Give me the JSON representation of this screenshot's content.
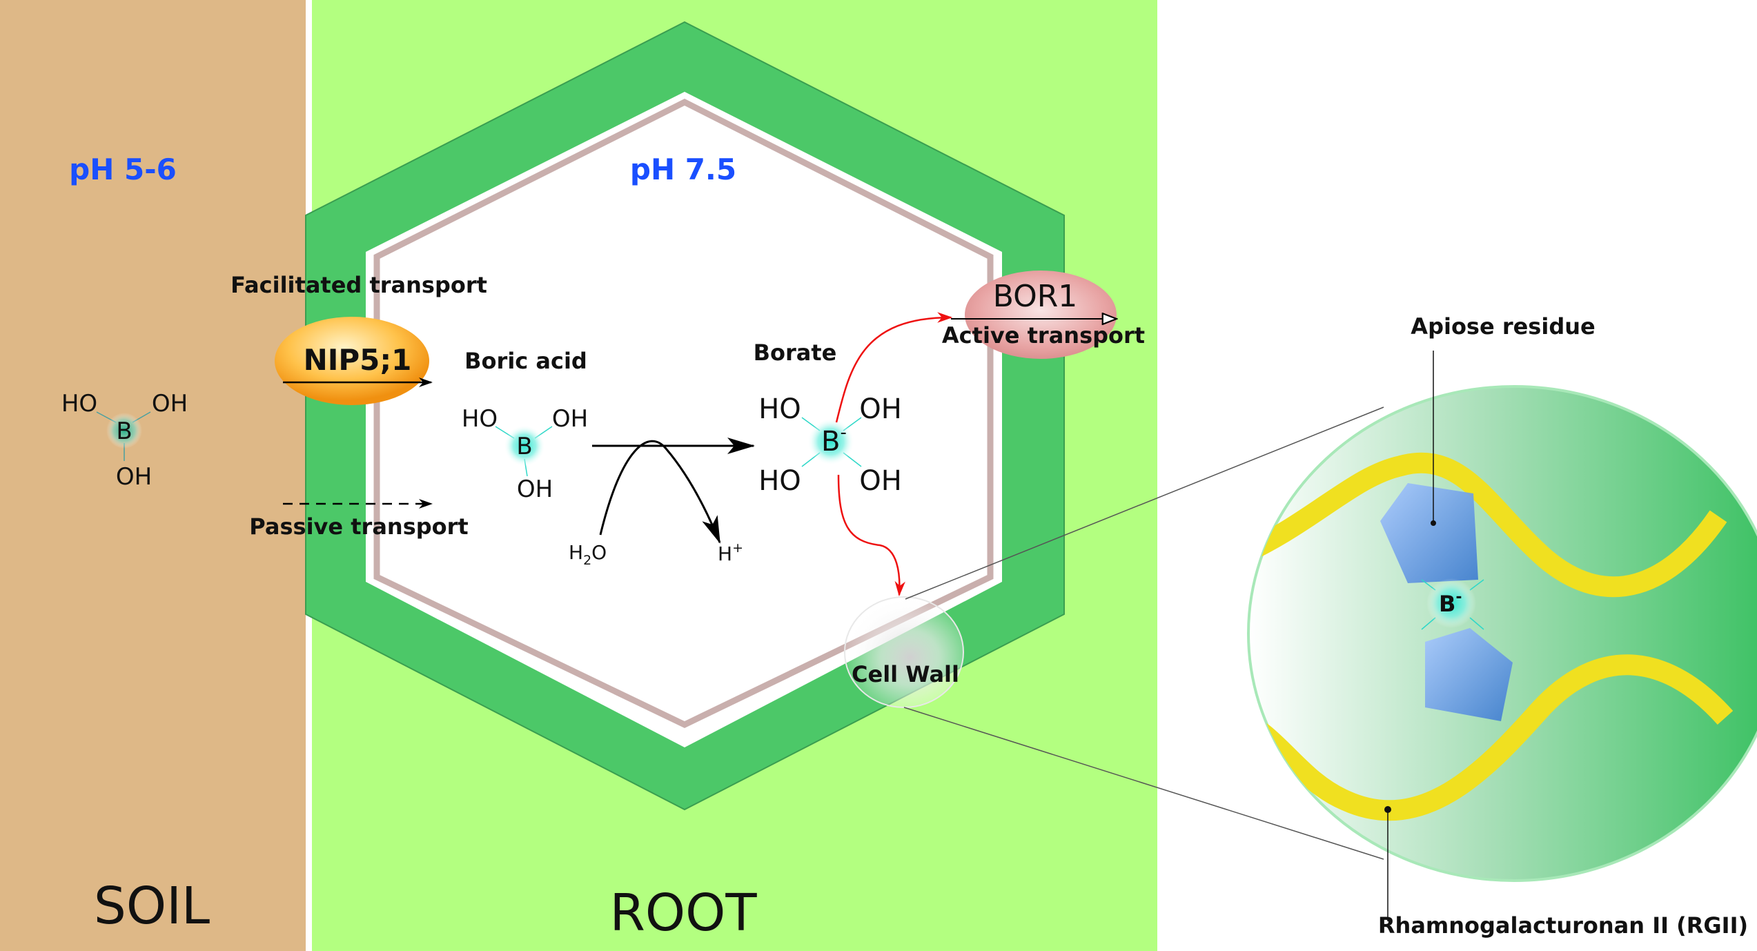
{
  "regions": {
    "soil": "SOIL",
    "root": "ROOT"
  },
  "ph": {
    "soil": "pH 5-6",
    "root": "pH 7.5"
  },
  "transport": {
    "facilitated": "Facilitated transport",
    "passive": "Passive transport",
    "active": "Active transport"
  },
  "proteins": {
    "nip": "NIP5;1",
    "bor": "BOR1"
  },
  "molecules": {
    "boric_acid": "Boric acid",
    "borate": "Borate",
    "ho": "HO",
    "oh": "OH",
    "boron": "B",
    "borate_ion": "B",
    "charge": "-",
    "water": "H",
    "water_sub": "2",
    "water_o": "O",
    "proton": "H",
    "proton_charge": "+"
  },
  "cell_wall": "Cell Wall",
  "inset": {
    "apiose": "Apiose residue",
    "rgii": "Rhamnogalacturonan II (RGII)",
    "borate_bridge": "B",
    "charge": "-"
  },
  "colors": {
    "soil": "#deb887",
    "root": "#b3ff80",
    "cell_wall": "#4cc868",
    "membrane": "#c9afad",
    "ph_text": "#1a4fff",
    "red_arrow": "#ee1111",
    "rgii": "#f0e020"
  }
}
